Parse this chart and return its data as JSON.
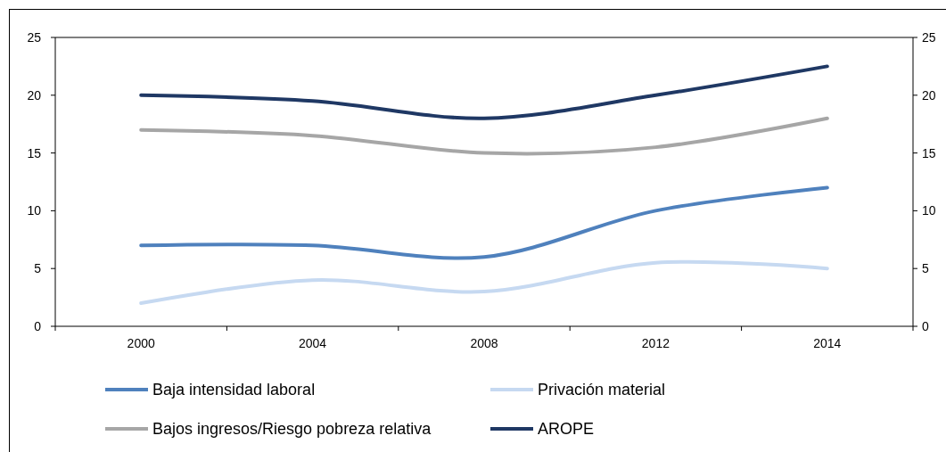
{
  "chart_data": {
    "type": "line",
    "categories": [
      "2000",
      "2004",
      "2008",
      "2012",
      "2014"
    ],
    "series": [
      {
        "name": "Baja intensidad laboral",
        "color": "#4f81bd",
        "values": [
          7,
          7,
          6,
          10,
          12
        ]
      },
      {
        "name": "Privación material",
        "color": "#c6d9f1",
        "values": [
          2,
          4,
          3,
          5.5,
          5
        ]
      },
      {
        "name": "Bajos ingresos/Riesgo pobreza relativa",
        "color": "#a6a6a6",
        "values": [
          17,
          16.5,
          15,
          15.5,
          18
        ]
      },
      {
        "name": "AROPE",
        "color": "#1f3864",
        "values": [
          20,
          19.5,
          18,
          20,
          22.5
        ]
      }
    ],
    "ylim": [
      0,
      25
    ],
    "yticks": [
      0,
      5,
      10,
      15,
      20,
      25
    ],
    "y2lim": [
      0,
      25
    ],
    "y2ticks": [
      0,
      5,
      10,
      15,
      20,
      25
    ],
    "grid": false,
    "legend": "bottom",
    "marker": "none",
    "line_style": "solid"
  }
}
